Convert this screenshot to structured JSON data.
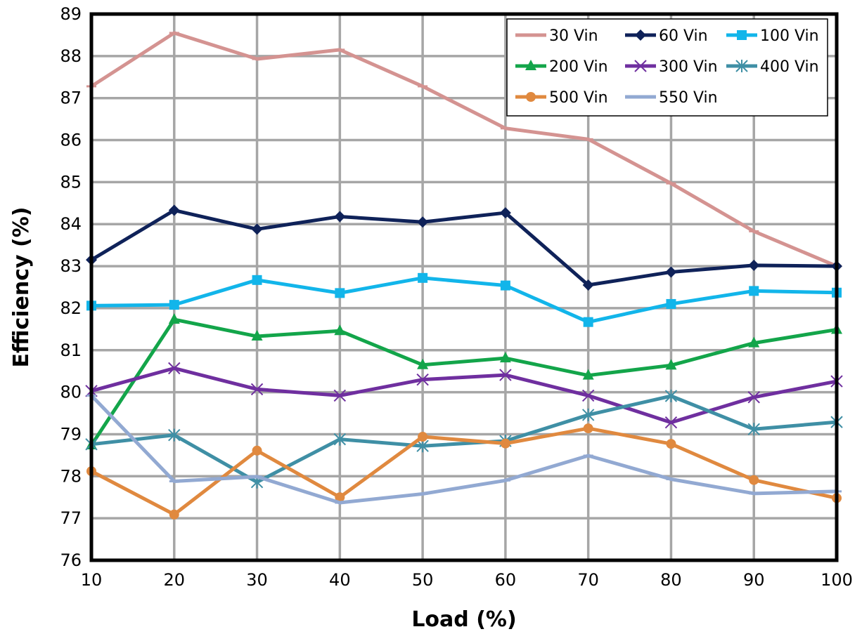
{
  "chart_data": {
    "type": "line",
    "xlabel": "Load (%)",
    "ylabel": "Efficiency (%)",
    "x": [
      10,
      20,
      30,
      40,
      50,
      60,
      70,
      80,
      90,
      100
    ],
    "xlim": [
      10,
      100
    ],
    "ylim": [
      76,
      89
    ],
    "xticks": [
      10,
      20,
      30,
      40,
      50,
      60,
      70,
      80,
      90,
      100
    ],
    "yticks": [
      76,
      77,
      78,
      79,
      80,
      81,
      82,
      83,
      84,
      85,
      86,
      87,
      88,
      89
    ],
    "grid": true,
    "legend_position": "top-right",
    "legend_columns": 3,
    "series": [
      {
        "name": "30 Vin",
        "color": "#d49391",
        "marker": "dash",
        "values": [
          87.28,
          88.55,
          87.93,
          88.15,
          87.28,
          86.28,
          86.02,
          84.97,
          83.83,
          83.0
        ]
      },
      {
        "name": "60 Vin",
        "color": "#0f2259",
        "marker": "diamond",
        "values": [
          83.15,
          84.33,
          83.88,
          84.18,
          84.05,
          84.27,
          82.55,
          82.86,
          83.02,
          83.0
        ]
      },
      {
        "name": "100 Vin",
        "color": "#12b5ea",
        "marker": "square",
        "values": [
          82.06,
          82.08,
          82.67,
          82.36,
          82.72,
          82.54,
          81.67,
          82.1,
          82.41,
          82.37
        ]
      },
      {
        "name": "200 Vin",
        "color": "#13a54a",
        "marker": "triangle",
        "values": [
          78.74,
          81.73,
          81.33,
          81.46,
          80.65,
          80.81,
          80.4,
          80.64,
          81.17,
          81.49
        ]
      },
      {
        "name": "300 Vin",
        "color": "#6f2f9f",
        "marker": "x",
        "values": [
          80.03,
          80.57,
          80.07,
          79.92,
          80.3,
          80.41,
          79.92,
          79.28,
          79.88,
          80.26
        ]
      },
      {
        "name": "400 Vin",
        "color": "#3f8fa5",
        "marker": "asterisk",
        "values": [
          78.76,
          78.98,
          77.86,
          78.88,
          78.72,
          78.84,
          79.46,
          79.91,
          79.12,
          79.29
        ]
      },
      {
        "name": "500 Vin",
        "color": "#e0893f",
        "marker": "circle",
        "values": [
          78.12,
          77.09,
          78.61,
          77.5,
          78.94,
          78.78,
          79.14,
          78.77,
          77.91,
          77.48
        ]
      },
      {
        "name": "550 Vin",
        "color": "#92a9d2",
        "marker": "dash",
        "values": [
          79.92,
          77.88,
          77.99,
          77.37,
          77.58,
          77.9,
          78.49,
          77.93,
          77.59,
          77.64
        ]
      }
    ]
  }
}
